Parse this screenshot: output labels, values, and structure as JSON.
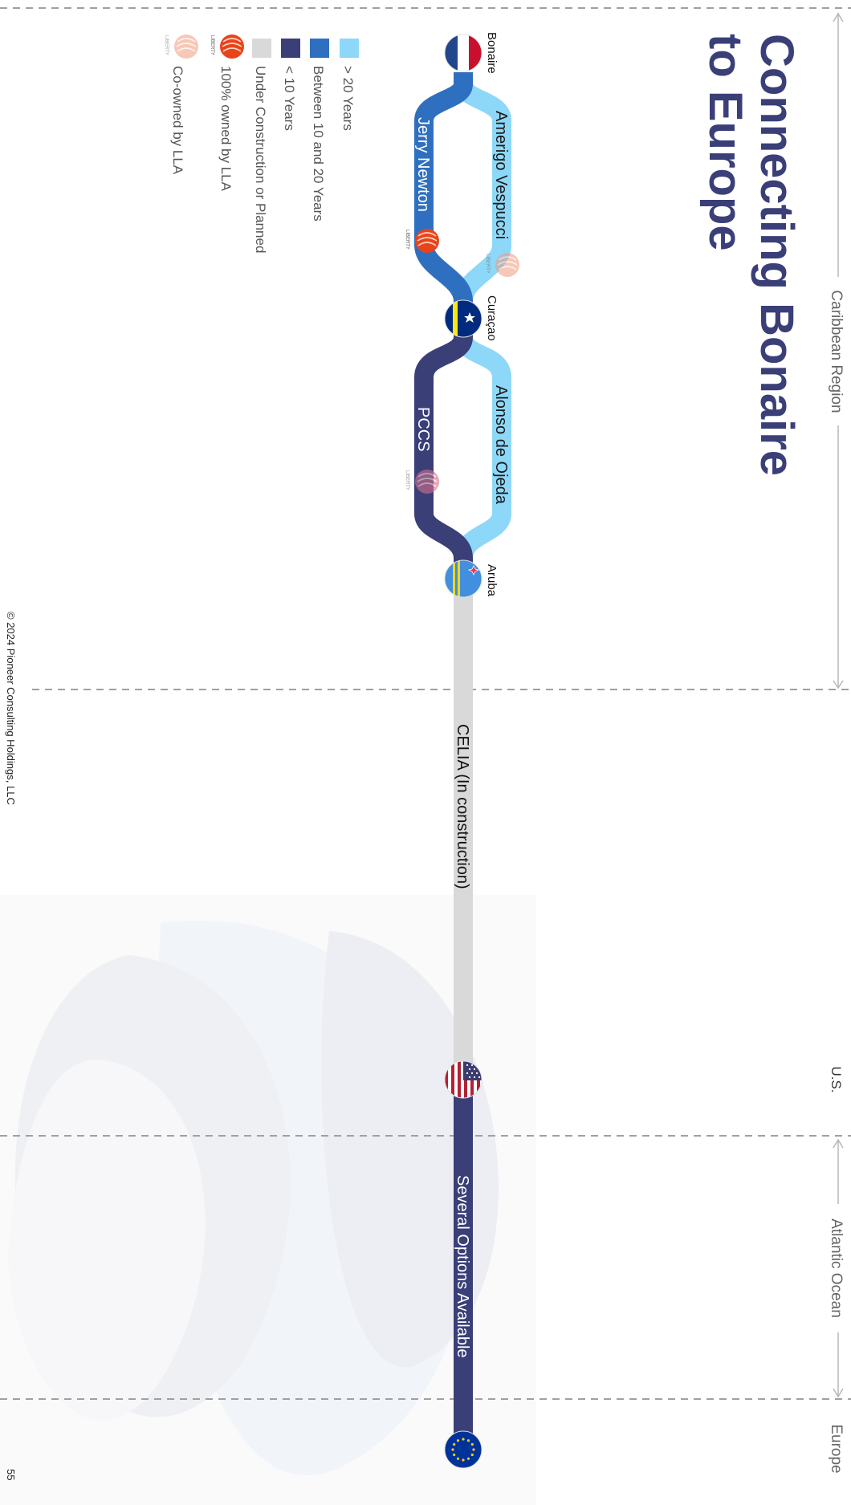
{
  "title": {
    "line1": "Connecting Bonaire",
    "line2": "to Europe"
  },
  "regions": [
    {
      "label": "Caribbean Region"
    },
    {
      "label": "U.S."
    },
    {
      "label": "Atlantic Ocean"
    },
    {
      "label": "Europe"
    }
  ],
  "nodes": {
    "bonaire": "Bonaire",
    "curacao": "Curaçao",
    "aruba": "Aruba"
  },
  "cables": {
    "amerigo_vespucci": "Amerigo Vespucci",
    "jerry_newton": "Jerry Newton",
    "alonso_de_ojeda": "Alonso de Ojeda",
    "pccs": "PCCS",
    "celia": "CELIA (In construction)",
    "several_options": "Several Options Available"
  },
  "legend": {
    "items": [
      {
        "label": "> 20 Years",
        "color": "#8dd8f8"
      },
      {
        "label": "Between 10 and 20 Years",
        "color": "#2f6fbf"
      },
      {
        "label": "< 10 Years",
        "color": "#3a3f78"
      },
      {
        "label": "Under Construction or Planned",
        "color": "#d9d9d9"
      },
      {
        "label": "100% owned by LLA",
        "icon": "liberty-logo-icon"
      },
      {
        "label": "Co-owned by LLA",
        "icon": "liberty-logo-faded-icon"
      }
    ]
  },
  "logo_text": "LIBERTY",
  "footer": {
    "copyright": "© 2024 Pioneer Consulting Holdings, LLC",
    "page_number": "55"
  },
  "colors": {
    "title": "#3a3f78",
    "over20": "#8dd8f8",
    "mid": "#2f6fbf",
    "under10": "#3a3f78",
    "construction": "#d9d9d9",
    "liberty": "#e8441c"
  }
}
